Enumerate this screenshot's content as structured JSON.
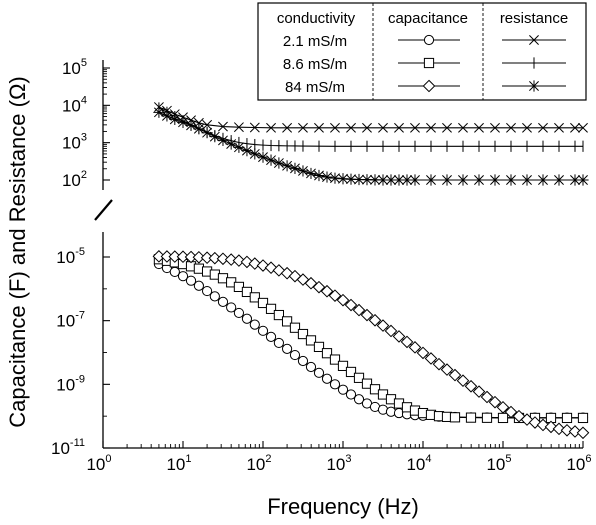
{
  "chart_data": {
    "type": "line",
    "title": "",
    "xlabel": "Frequency (Hz)",
    "ylabel": "Capacitance (F) and Resistance (Ω)",
    "x_scale": "log",
    "y_scale": "log",
    "y_axis_break": true,
    "grid": false,
    "legend_placement": "top-right",
    "xlim": [
      1,
      1000000
    ],
    "x_ticks": [
      {
        "base": "10",
        "exp": "0",
        "value": 1
      },
      {
        "base": "10",
        "exp": "1",
        "value": 10
      },
      {
        "base": "10",
        "exp": "2",
        "value": 100
      },
      {
        "base": "10",
        "exp": "3",
        "value": 1000
      },
      {
        "base": "10",
        "exp": "4",
        "value": 10000
      },
      {
        "base": "10",
        "exp": "5",
        "value": 100000
      },
      {
        "base": "10",
        "exp": "6",
        "value": 1000000
      }
    ],
    "resistance_axis": {
      "ylim": [
        100,
        100000
      ],
      "ticks": [
        {
          "base": "10",
          "exp": "2",
          "value": 100
        },
        {
          "base": "10",
          "exp": "3",
          "value": 1000
        },
        {
          "base": "10",
          "exp": "4",
          "value": 10000
        },
        {
          "base": "10",
          "exp": "5",
          "value": 100000
        }
      ]
    },
    "capacitance_axis": {
      "ylim": [
        1e-11,
        1e-05
      ],
      "ticks": [
        {
          "base": "10",
          "exp": "-5",
          "value": 1e-05
        },
        {
          "base": "10",
          "exp": "-7",
          "value": 1e-07
        },
        {
          "base": "10",
          "exp": "-9",
          "value": 1e-09
        },
        {
          "base": "10",
          "exp": "-11",
          "value": 1e-11
        }
      ]
    },
    "legend": {
      "headers": [
        "conductivity",
        "capacitance",
        "resistance"
      ],
      "rows": [
        "2.1 mS/m",
        "8.6 mS/m",
        "84 mS/m"
      ]
    },
    "series": [
      {
        "name": "2.1 mS/m",
        "quantity": "capacitance",
        "marker": "circle",
        "x": [
          5,
          6.3,
          7.9,
          10,
          12.6,
          15.8,
          20,
          25,
          31.6,
          40,
          50,
          63,
          79,
          100,
          126,
          158,
          200,
          251,
          316,
          398,
          501,
          631,
          794,
          1000,
          1259,
          1585,
          1995,
          2512,
          3162,
          3981,
          5012,
          6310,
          7943,
          10000,
          15849,
          25119,
          39811,
          63096,
          100000,
          158489,
          251189,
          398107,
          630957,
          1000000
        ],
        "y": [
          6e-06,
          4.5e-06,
          3.4e-06,
          2.5e-06,
          1.8e-06,
          1.25e-06,
          8.5e-07,
          5.8e-07,
          3.9e-07,
          2.6e-07,
          1.75e-07,
          1.15e-07,
          7.5e-08,
          4.8e-08,
          3.1e-08,
          2e-08,
          1.3e-08,
          8.3e-09,
          5.4e-09,
          3.5e-09,
          2.3e-09,
          1.5e-09,
          1e-09,
          6.8e-10,
          4.8e-10,
          3.4e-10,
          2.5e-10,
          1.95e-10,
          1.6e-10,
          1.38e-10,
          1.25e-10,
          1.15e-10,
          1.08e-10,
          1.03e-10,
          9.7e-11,
          9.4e-11,
          9.2e-11,
          9.1e-11,
          9e-11,
          9e-11,
          9e-11,
          9e-11,
          9e-11,
          9e-11
        ]
      },
      {
        "name": "8.6 mS/m",
        "quantity": "capacitance",
        "marker": "square",
        "x": [
          5,
          6.3,
          7.9,
          10,
          12.6,
          15.8,
          20,
          25,
          31.6,
          40,
          50,
          63,
          79,
          100,
          126,
          158,
          200,
          251,
          316,
          398,
          501,
          631,
          794,
          1000,
          1259,
          1585,
          1995,
          2512,
          3162,
          3981,
          5012,
          6310,
          7943,
          10000,
          12589,
          15849,
          19953,
          25119,
          39811,
          63096,
          100000,
          158489,
          251189,
          398107,
          630957,
          1000000
        ],
        "y": [
          8.5e-06,
          7.6e-06,
          6.8e-06,
          6e-06,
          5.1e-06,
          4.3e-06,
          3.5e-06,
          2.8e-06,
          2.15e-06,
          1.6e-06,
          1.15e-06,
          8e-07,
          5.4e-07,
          3.6e-07,
          2.35e-07,
          1.5e-07,
          9.5e-08,
          6e-08,
          3.8e-08,
          2.4e-08,
          1.5e-08,
          9.5e-09,
          6e-09,
          3.8e-09,
          2.45e-09,
          1.6e-09,
          1.05e-09,
          7e-10,
          4.8e-10,
          3.4e-10,
          2.5e-10,
          1.9e-10,
          1.5e-10,
          1.25e-10,
          1.1e-10,
          1e-10,
          9.5e-11,
          9.2e-11,
          9e-11,
          8.9e-11,
          8.8e-11,
          8.8e-11,
          8.8e-11,
          8.8e-11,
          8.8e-11,
          8.8e-11
        ]
      },
      {
        "name": "84 mS/m",
        "quantity": "capacitance",
        "marker": "diamond",
        "x": [
          5,
          6.3,
          7.9,
          10,
          12.6,
          15.8,
          20,
          25,
          31.6,
          40,
          50,
          63,
          79,
          100,
          126,
          158,
          200,
          251,
          316,
          398,
          501,
          631,
          794,
          1000,
          1259,
          1585,
          1995,
          2512,
          3162,
          3981,
          5012,
          6310,
          7943,
          10000,
          12589,
          15849,
          19953,
          25119,
          31623,
          39811,
          50119,
          63096,
          79433,
          100000,
          125893,
          158489,
          199526,
          251189,
          316228,
          398107,
          501187,
          630957,
          794328,
          1000000
        ],
        "y": [
          1.05e-05,
          1.04e-05,
          1.03e-05,
          1.02e-05,
          1e-05,
          9.8e-06,
          9.5e-06,
          9.2e-06,
          8.8e-06,
          8.3e-06,
          7.7e-06,
          7e-06,
          6.2e-06,
          5.4e-06,
          4.6e-06,
          3.8e-06,
          3.1e-06,
          2.5e-06,
          1.95e-06,
          1.5e-06,
          1.13e-06,
          8.4e-07,
          6.1e-07,
          4.4e-07,
          3.1e-07,
          2.15e-07,
          1.5e-07,
          1.03e-07,
          7e-08,
          4.75e-08,
          3.2e-08,
          2.15e-08,
          1.45e-08,
          9.7e-09,
          6.5e-09,
          4.3e-09,
          2.9e-09,
          1.95e-09,
          1.3e-09,
          8.7e-10,
          5.9e-10,
          4e-10,
          2.75e-10,
          1.9e-10,
          1.35e-10,
          1e-10,
          7.8e-11,
          6.3e-11,
          5.3e-11,
          4.6e-11,
          4e-11,
          3.6e-11,
          3.3e-11,
          3e-11
        ]
      },
      {
        "name": "2.1 mS/m",
        "quantity": "resistance",
        "marker": "x",
        "x": [
          5,
          6.3,
          7.9,
          10,
          12.6,
          15.8,
          20,
          31.6,
          50,
          79,
          126,
          200,
          316,
          501,
          794,
          1259,
          1995,
          3162,
          5012,
          7943,
          12589,
          19953,
          31623,
          50119,
          79433,
          125893,
          199526,
          316228,
          501187,
          794328,
          1000000
        ],
        "y": [
          9000,
          7200,
          5800,
          4800,
          4000,
          3400,
          3000,
          2700,
          2600,
          2550,
          2500,
          2500,
          2500,
          2500,
          2500,
          2500,
          2500,
          2500,
          2500,
          2500,
          2500,
          2500,
          2500,
          2500,
          2500,
          2500,
          2500,
          2500,
          2500,
          2500,
          2500
        ]
      },
      {
        "name": "8.6 mS/m",
        "quantity": "resistance",
        "marker": "plus",
        "x": [
          5,
          6.3,
          7.9,
          10,
          12.6,
          15.8,
          20,
          25,
          31.6,
          40,
          50,
          63,
          79,
          100,
          126,
          158,
          200,
          251,
          316,
          501,
          794,
          1259,
          1995,
          3162,
          5012,
          7943,
          12589,
          19953,
          31623,
          50119,
          79433,
          125893,
          199526,
          316228,
          501187,
          794328,
          1000000
        ],
        "y": [
          8500,
          6500,
          5000,
          3900,
          3000,
          2400,
          1900,
          1550,
          1300,
          1130,
          1010,
          940,
          890,
          860,
          840,
          830,
          820,
          815,
          810,
          805,
          800,
          800,
          800,
          800,
          800,
          800,
          800,
          800,
          800,
          800,
          800,
          800,
          800,
          800,
          800,
          800,
          800
        ]
      },
      {
        "name": "84 mS/m",
        "quantity": "resistance",
        "marker": "asterisk",
        "x": [
          5,
          6.3,
          7.9,
          10,
          12.6,
          15.8,
          20,
          25,
          31.6,
          40,
          50,
          63,
          79,
          100,
          126,
          158,
          200,
          251,
          316,
          398,
          501,
          631,
          794,
          1000,
          1259,
          1585,
          1995,
          2512,
          3162,
          3981,
          5012,
          6310,
          7943,
          12589,
          19953,
          31623,
          50119,
          79433,
          125893,
          199526,
          316228,
          501187,
          794328,
          1000000
        ],
        "y": [
          6500,
          5200,
          4200,
          3500,
          2900,
          2350,
          1850,
          1450,
          1150,
          920,
          750,
          610,
          500,
          410,
          340,
          285,
          240,
          205,
          175,
          150,
          132,
          120,
          112,
          108,
          105,
          103,
          102,
          101,
          100,
          100,
          100,
          100,
          100,
          100,
          100,
          100,
          100,
          100,
          100,
          100,
          100,
          100,
          100,
          100
        ]
      }
    ]
  }
}
